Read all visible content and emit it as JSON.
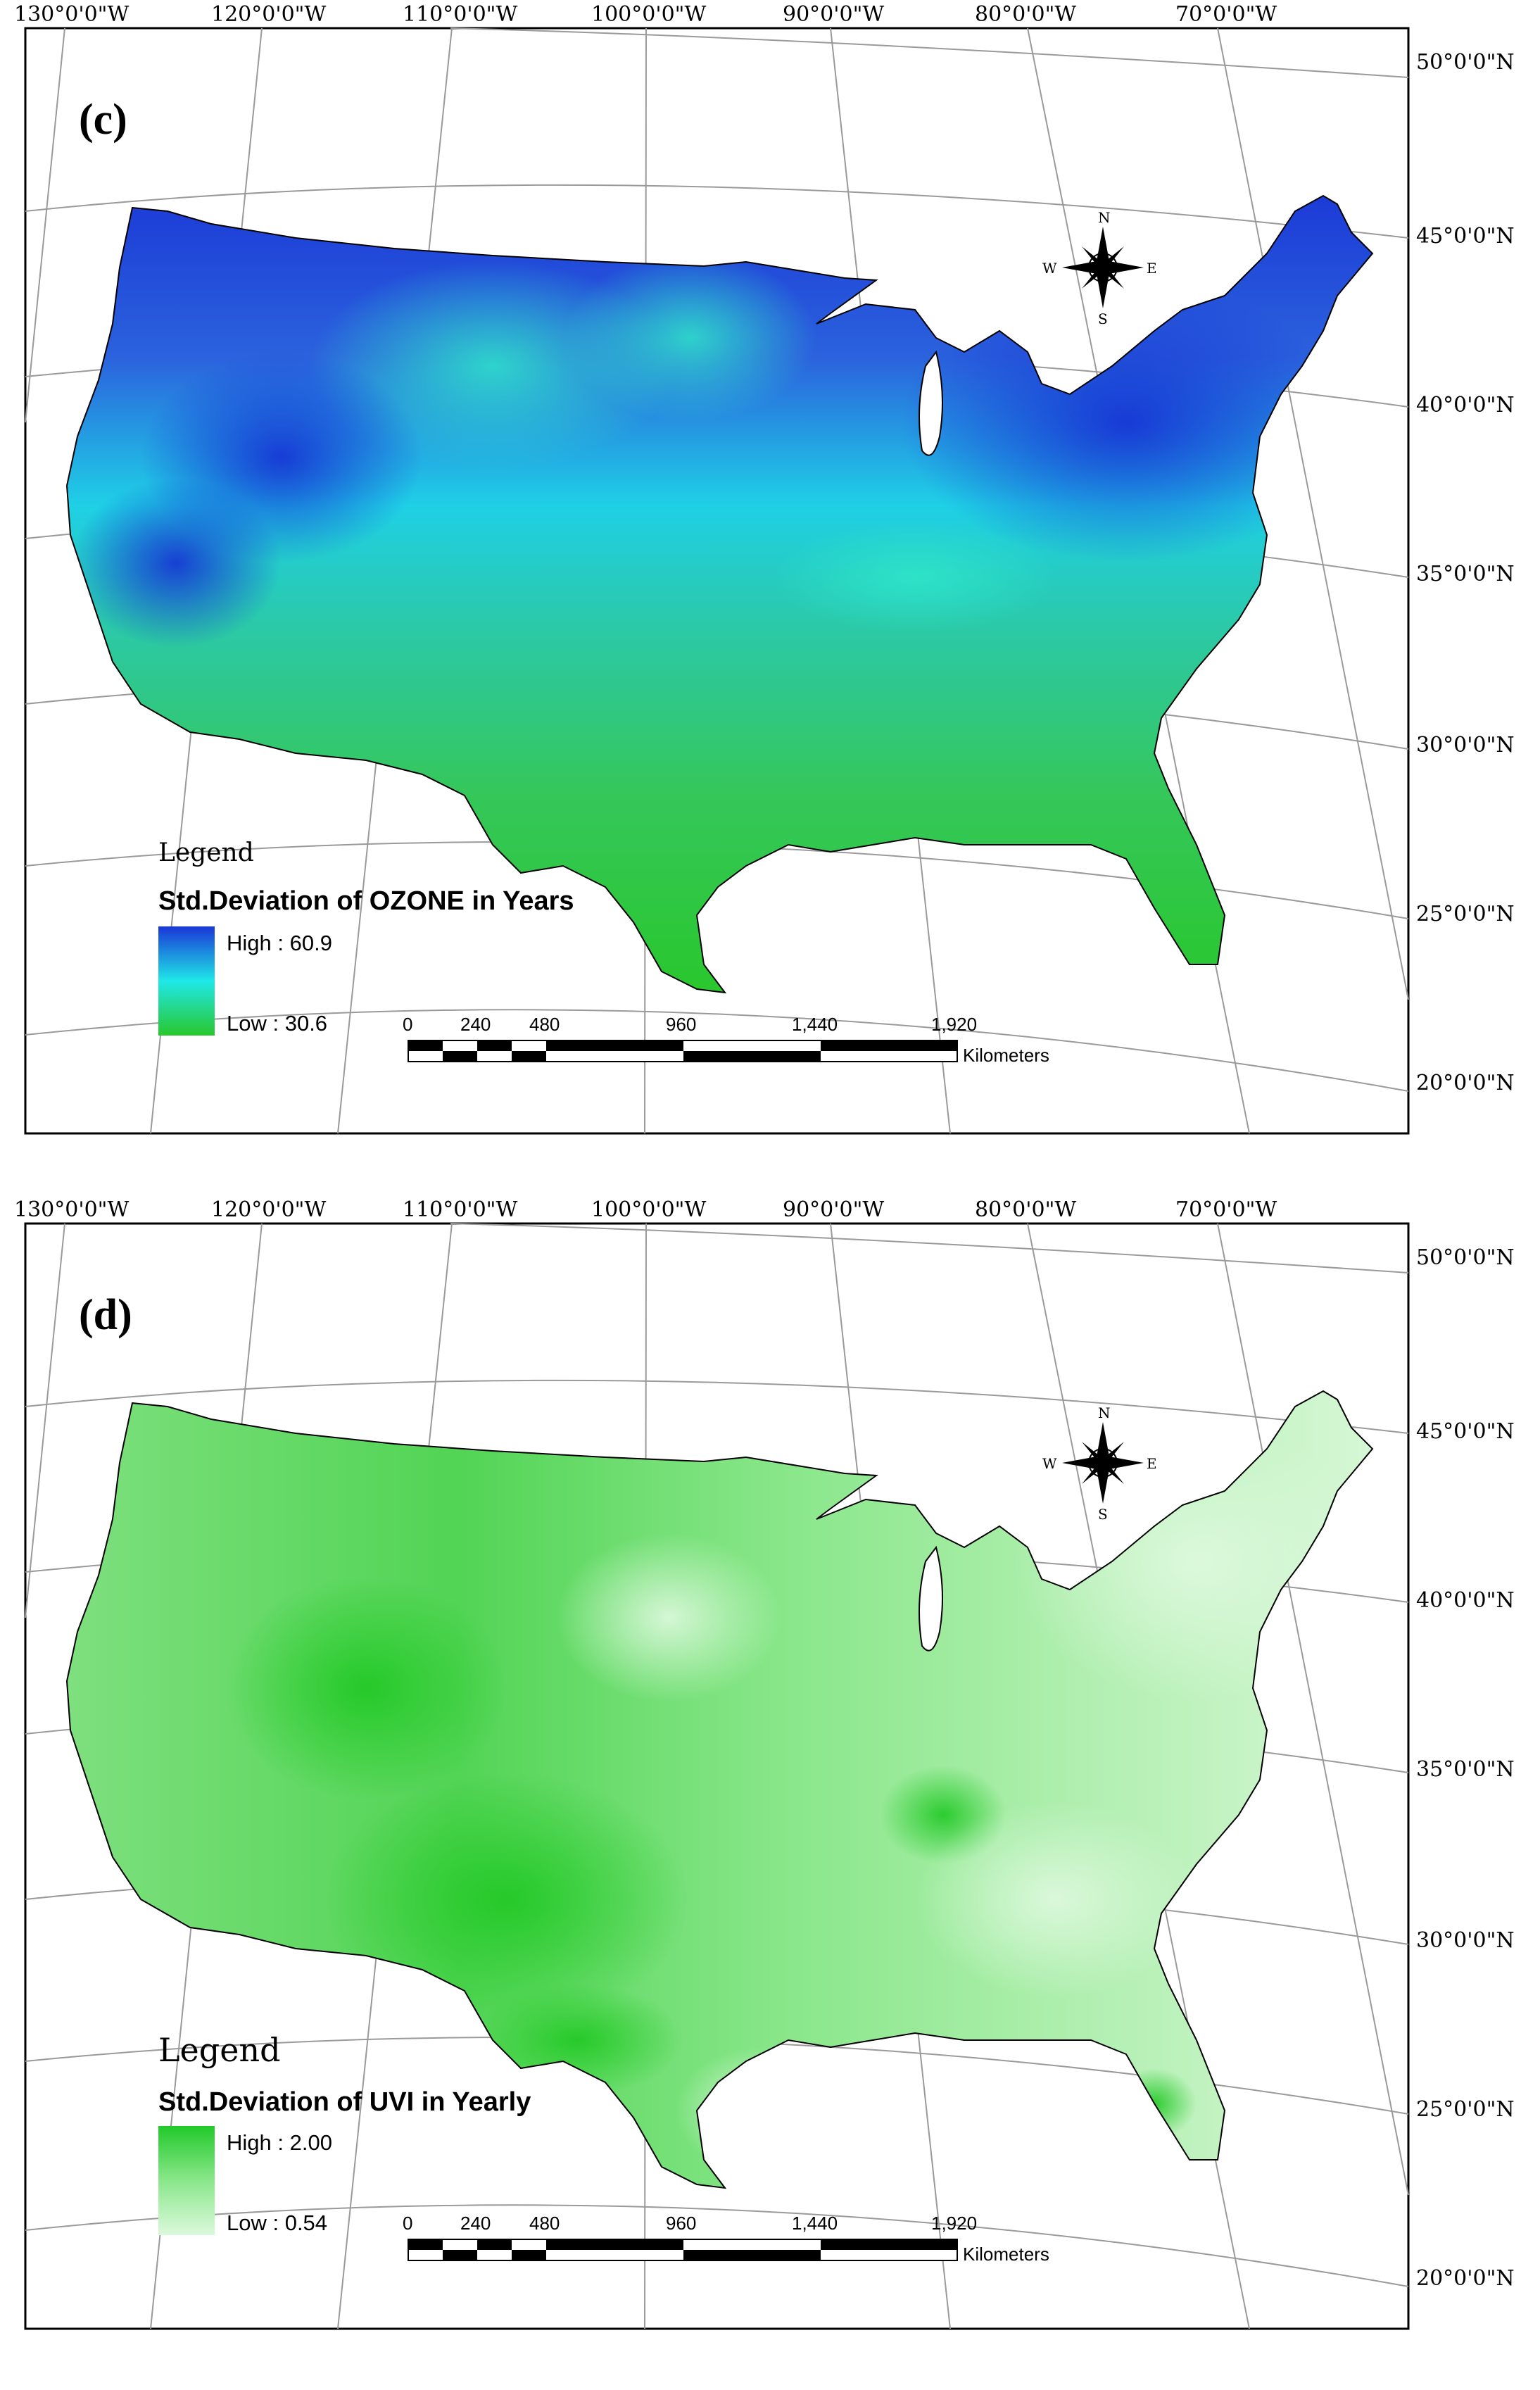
{
  "panels": [
    {
      "label": "(c)",
      "legend_title": "Legend",
      "legend_subtitle": "Std.Deviation of OZONE in Years",
      "high_label": "High : 60.9",
      "low_label": "Low : 30.6",
      "color_high": "#1a36d6",
      "color_mid": "#1fe8e8",
      "color_low": "#29c72c"
    },
    {
      "label": "(d)",
      "legend_title": "Legend",
      "legend_subtitle": "Std.Deviation of UVI in Yearly",
      "high_label": "High : 2.00",
      "low_label": "Low : 0.54",
      "color_high": "#22c92a",
      "color_mid": "#8ae78b",
      "color_low": "#dcf9dc"
    }
  ],
  "longitude_labels": [
    "130°0'0\"W",
    "120°0'0\"W",
    "110°0'0\"W",
    "100°0'0\"W",
    "90°0'0\"W",
    "80°0'0\"W",
    "70°0'0\"W"
  ],
  "latitude_labels": [
    "50°0'0\"N",
    "45°0'0\"N",
    "40°0'0\"N",
    "35°0'0\"N",
    "30°0'0\"N",
    "25°0'0\"N",
    "20°0'0\"N"
  ],
  "scale_bar": {
    "ticks": [
      "0",
      "240",
      "480",
      "960",
      "1,440",
      "1,920"
    ],
    "unit": "Kilometers"
  },
  "north_arrow": {
    "n": "N",
    "s": "S",
    "e": "E",
    "w": "W"
  }
}
